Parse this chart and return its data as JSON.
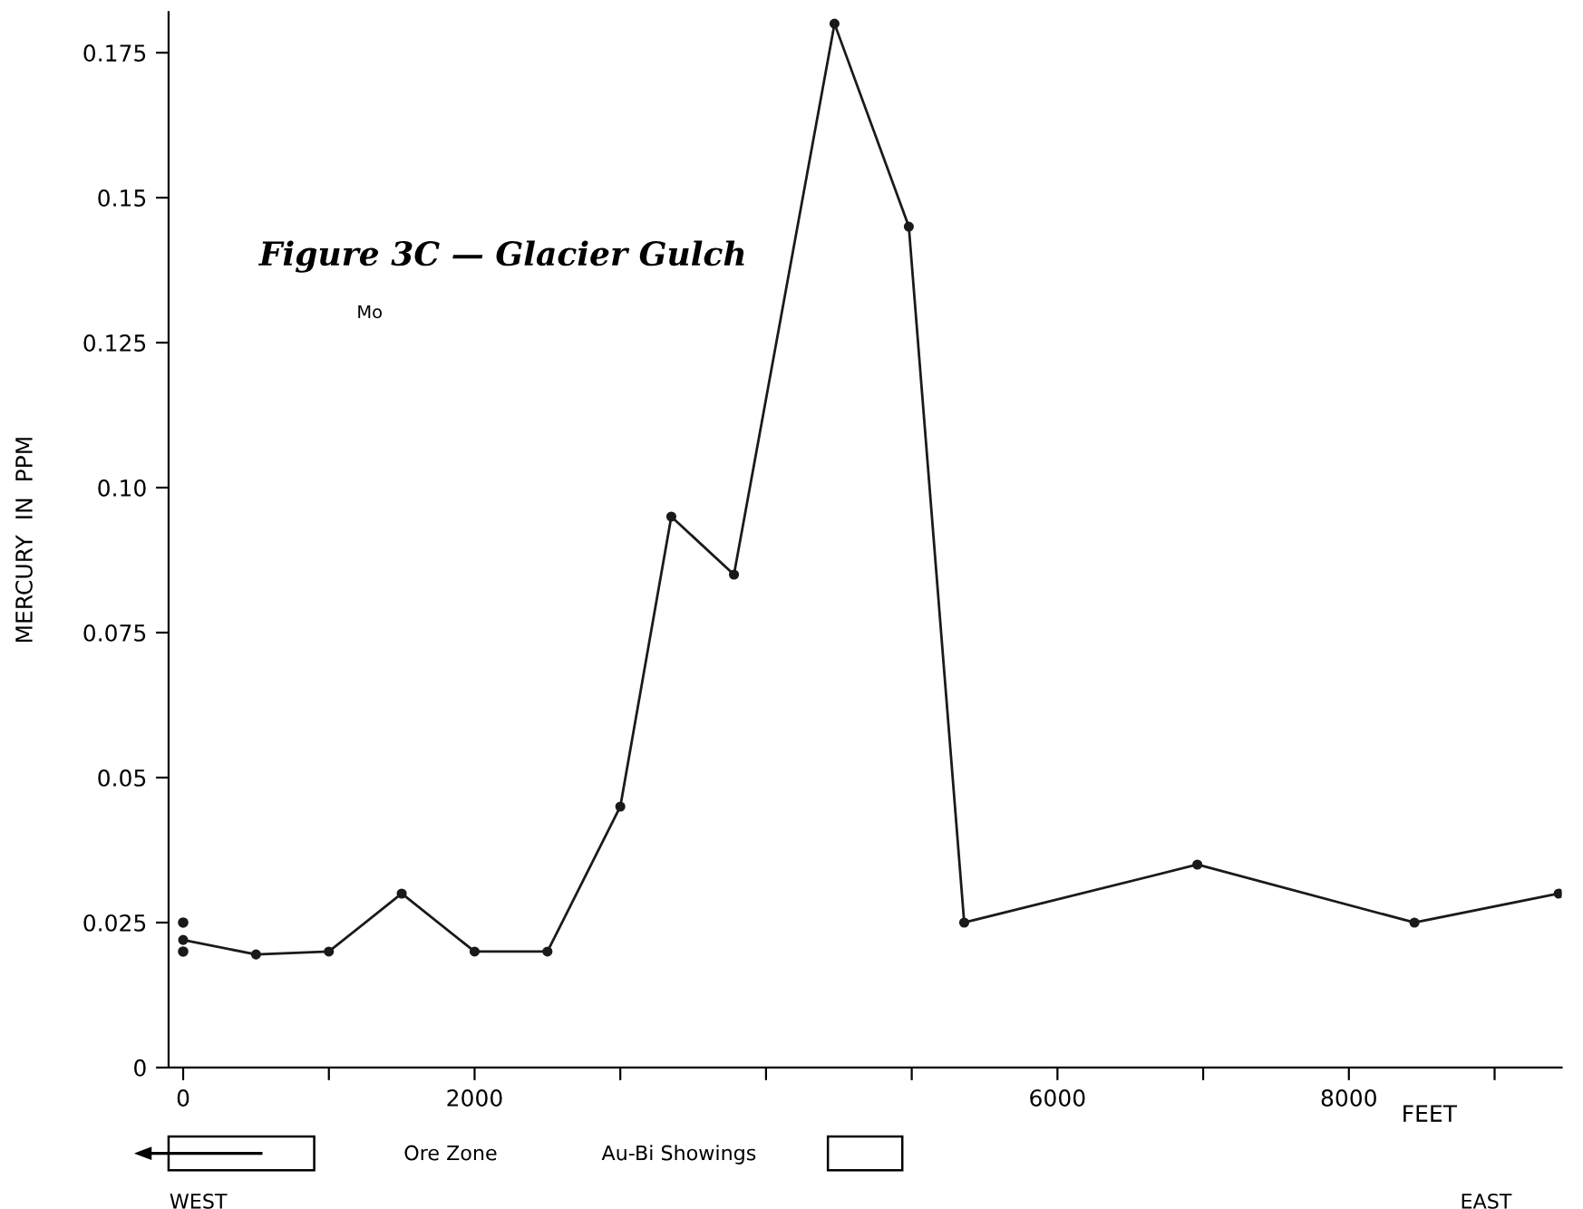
{
  "chart_data": {
    "type": "line",
    "title": "Figure 3C — Glacier Gulch",
    "subtitle": "Mo",
    "xlabel": "FEET",
    "ylabel": "MERCURY  IN  PPM",
    "series": [
      {
        "color": "#1a1a1a",
        "marker": "circle",
        "x": [
          0,
          500,
          1000,
          1500,
          2000,
          2500,
          3000,
          3350,
          3780,
          4470,
          4980,
          5360,
          6960,
          8450,
          9440
        ],
        "values": [
          0.022,
          0.0195,
          0.02,
          0.03,
          0.02,
          0.02,
          0.045,
          0.095,
          0.085,
          0.18,
          0.145,
          0.025,
          0.035,
          0.025,
          0.03
        ]
      },
      {
        "type": "scatter",
        "color": "#1a1a1a",
        "marker": "circle",
        "x": [
          0,
          0
        ],
        "values": [
          0.025,
          0.02
        ]
      }
    ],
    "xlim": [
      -100,
      9460
    ],
    "ylim": [
      0,
      0.182
    ],
    "xticks": [
      0,
      {
        "value": 1000,
        "label": null
      },
      2000,
      {
        "value": 3000,
        "label": null
      },
      {
        "value": 4000,
        "label": null
      },
      {
        "value": 5000,
        "label": null
      },
      6000,
      {
        "value": 7000,
        "label": null
      },
      8000,
      {
        "value": 9000,
        "label": null
      }
    ],
    "yticks": [
      0,
      0.025,
      0.05,
      0.075,
      {
        "value": 0.1,
        "label": "0.10"
      },
      0.125,
      0.15,
      0.175
    ],
    "annotations": [
      "Ore Zone",
      "Au-Bi Showings",
      "WEST",
      "EAST"
    ],
    "grid": false
  }
}
